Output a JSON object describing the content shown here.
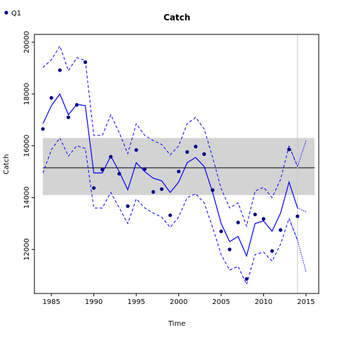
{
  "chart_data": {
    "type": "line",
    "title": "Catch",
    "xlabel": "Time",
    "ylabel": "Catch",
    "xlim": [
      1983,
      2016.5
    ],
    "ylim": [
      10300,
      20300
    ],
    "xticks": [
      1985,
      1990,
      1995,
      2000,
      2005,
      2010,
      2015
    ],
    "yticks": [
      12000,
      14000,
      16000,
      18000,
      20000
    ],
    "grid": false,
    "legend": {
      "position": "top-left",
      "entries": [
        "Q1"
      ]
    },
    "colors": {
      "points": "#00008b",
      "fit": "#0000ff",
      "band": "#d3d3d3",
      "mean_line": "#000000",
      "vline": "#c8c8c8"
    },
    "points": {
      "name": "Q1",
      "x": [
        1984,
        1985,
        1986,
        1987,
        1988,
        1989,
        1990,
        1991,
        1992,
        1993,
        1994,
        1995,
        1996,
        1997,
        1998,
        1999,
        2000,
        2001,
        2002,
        2003,
        2004,
        2005,
        2006,
        2007,
        2008,
        2009,
        2010,
        2011,
        2012,
        2013,
        2014
      ],
      "y": [
        16650,
        17850,
        18920,
        17100,
        17580,
        19230,
        14370,
        15080,
        15580,
        14920,
        13670,
        15840,
        15100,
        14220,
        14330,
        13320,
        15010,
        15760,
        15970,
        15680,
        14290,
        12700,
        12000,
        13040,
        10860,
        13350,
        13180,
        11940,
        12750,
        15860,
        13280
      ]
    },
    "fit": {
      "x": [
        1984,
        1985,
        1986,
        1987,
        1988,
        1989,
        1990,
        1991,
        1992,
        1993,
        1994,
        1995,
        1996,
        1997,
        1998,
        1999,
        2000,
        2001,
        2002,
        2003,
        2004,
        2005,
        2006,
        2007,
        2008,
        2009,
        2010,
        2011,
        2012,
        2013,
        2014
      ],
      "y": [
        16850,
        17550,
        18000,
        17200,
        17600,
        17550,
        14950,
        14950,
        15600,
        15000,
        14300,
        15350,
        15000,
        14750,
        14650,
        14200,
        14600,
        15350,
        15550,
        15200,
        14200,
        13000,
        12300,
        12500,
        11750,
        13000,
        13100,
        12700,
        13400,
        14600,
        13600
      ]
    },
    "upper": {
      "x": [
        1984,
        1985,
        1986,
        1987,
        1988,
        1989,
        1990,
        1991,
        1992,
        1993,
        1994,
        1995,
        1996,
        1997,
        1998,
        1999,
        2000,
        2001,
        2002,
        2003,
        2004,
        2005,
        2006,
        2007,
        2008,
        2009,
        2010,
        2011,
        2012,
        2013,
        2014
      ],
      "y": [
        19020,
        19320,
        19850,
        18900,
        19400,
        19300,
        16400,
        16400,
        17200,
        16500,
        15700,
        16850,
        16400,
        16200,
        16050,
        15650,
        16000,
        16850,
        17100,
        16650,
        15550,
        14350,
        13600,
        13800,
        12900,
        14250,
        14400,
        14000,
        14700,
        16000,
        15200
      ]
    },
    "lower": {
      "x": [
        1984,
        1985,
        1986,
        1987,
        1988,
        1989,
        1990,
        1991,
        1992,
        1993,
        1994,
        1995,
        1996,
        1997,
        1998,
        1999,
        2000,
        2001,
        2002,
        2003,
        2004,
        2005,
        2006,
        2007,
        2008,
        2009,
        2010,
        2011,
        2012,
        2013,
        2014
      ],
      "y": [
        14950,
        15850,
        16300,
        15600,
        16000,
        15900,
        13600,
        13600,
        14200,
        13600,
        13000,
        13950,
        13600,
        13400,
        13250,
        12850,
        13250,
        14000,
        14150,
        13800,
        12850,
        11800,
        11200,
        11350,
        10650,
        11800,
        11900,
        11550,
        12200,
        13200,
        12350
      ]
    },
    "forecast": {
      "fit": {
        "x": [
          2014,
          2015
        ],
        "y": [
          13600,
          13450
        ]
      },
      "upper": {
        "x": [
          2013,
          2014,
          2015
        ],
        "y": [
          16000,
          15200,
          16200
        ]
      },
      "lower": {
        "x": [
          2013,
          2014,
          2015
        ],
        "y": [
          13200,
          12350,
          11150
        ]
      }
    },
    "band": {
      "x_range": [
        1984,
        2016
      ],
      "y_range": [
        14100,
        16300
      ]
    },
    "mean_line": {
      "x_range": [
        1984,
        2016
      ],
      "y": 15150
    },
    "vline": {
      "x": 2014
    }
  }
}
